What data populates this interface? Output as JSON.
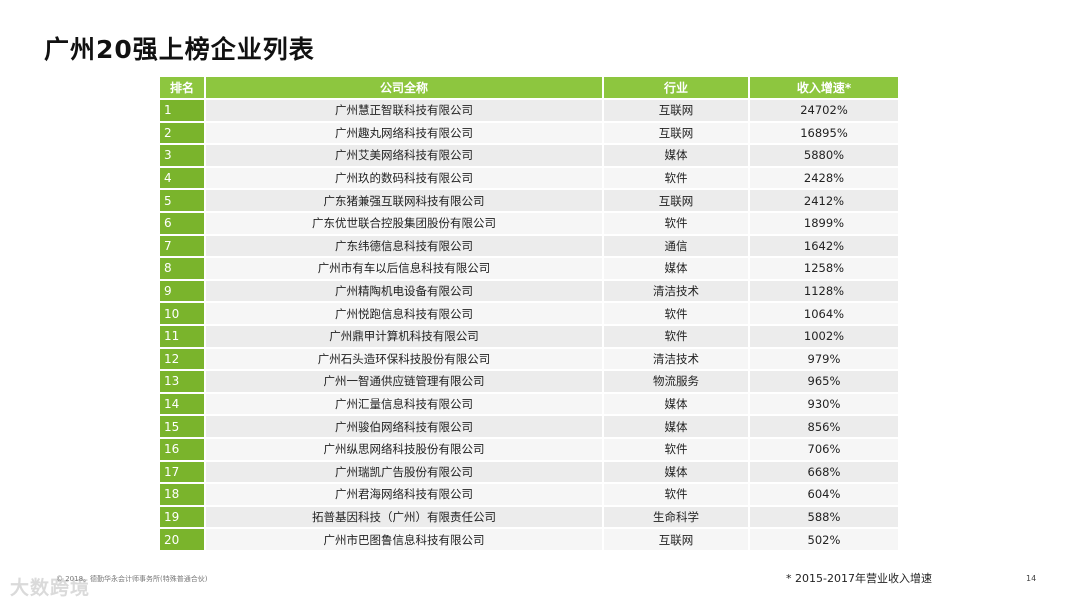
{
  "title": "广州20强上榜企业列表",
  "table": {
    "headers": [
      "排名",
      "公司全称",
      "行业",
      "收入增速*"
    ],
    "rows": [
      [
        "1",
        "广州慧正智联科技有限公司",
        "互联网",
        "24702%"
      ],
      [
        "2",
        "广州趣丸网络科技有限公司",
        "互联网",
        "16895%"
      ],
      [
        "3",
        "广州艾美网络科技有限公司",
        "媒体",
        "5880%"
      ],
      [
        "4",
        "广州玖的数码科技有限公司",
        "软件",
        "2428%"
      ],
      [
        "5",
        "广东猪兼强互联网科技有限公司",
        "互联网",
        "2412%"
      ],
      [
        "6",
        "广东优世联合控股集团股份有限公司",
        "软件",
        "1899%"
      ],
      [
        "7",
        "广东纬德信息科技有限公司",
        "通信",
        "1642%"
      ],
      [
        "8",
        "广州市有车以后信息科技有限公司",
        "媒体",
        "1258%"
      ],
      [
        "9",
        "广州精陶机电设备有限公司",
        "清洁技术",
        "1128%"
      ],
      [
        "10",
        "广州悦跑信息科技有限公司",
        "软件",
        "1064%"
      ],
      [
        "11",
        "广州鼎甲计算机科技有限公司",
        "软件",
        "1002%"
      ],
      [
        "12",
        "广州石头造环保科技股份有限公司",
        "清洁技术",
        "979%"
      ],
      [
        "13",
        "广州一智通供应链管理有限公司",
        "物流服务",
        "965%"
      ],
      [
        "14",
        "广州汇量信息科技有限公司",
        "媒体",
        "930%"
      ],
      [
        "15",
        "广州骏伯网络科技有限公司",
        "媒体",
        "856%"
      ],
      [
        "16",
        "广州纵思网络科技股份有限公司",
        "软件",
        "706%"
      ],
      [
        "17",
        "广州瑞凯广告股份有限公司",
        "媒体",
        "668%"
      ],
      [
        "18",
        "广州君海网络科技有限公司",
        "软件",
        "604%"
      ],
      [
        "19",
        "拓普基因科技（广州）有限责任公司",
        "生命科学",
        "588%"
      ],
      [
        "20",
        "广州市巴图鲁信息科技有限公司",
        "互联网",
        "502%"
      ]
    ]
  },
  "footer": {
    "copyright": "© 2018。德勤华永会计师事务所(特殊普通合伙)",
    "watermark": "大数跨境",
    "footnote": "*  2015-2017年营业收入增速",
    "page_number": "14"
  }
}
